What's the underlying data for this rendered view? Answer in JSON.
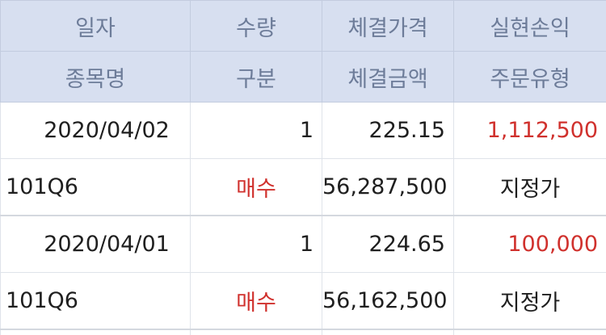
{
  "header": {
    "row1": [
      "일자",
      "수량",
      "체결가격",
      "실현손익"
    ],
    "row2": [
      "종목명",
      "구분",
      "체결금액",
      "주문유형"
    ]
  },
  "trades": [
    {
      "date": "2020/04/02",
      "qty": "1",
      "price": "225.15",
      "pnl": "1,112,500",
      "symbol": "101Q6",
      "side": "매수",
      "amount": "56,287,500",
      "order_type": "지정가"
    },
    {
      "date": "2020/04/01",
      "qty": "1",
      "price": "224.65",
      "pnl": "100,000",
      "symbol": "101Q6",
      "side": "매수",
      "amount": "56,162,500",
      "order_type": "지정가"
    }
  ],
  "colors": {
    "header_bg": "#d7dff0",
    "header_text": "#6d7c99",
    "profit": "#d0312d",
    "buy": "#d0312d"
  }
}
